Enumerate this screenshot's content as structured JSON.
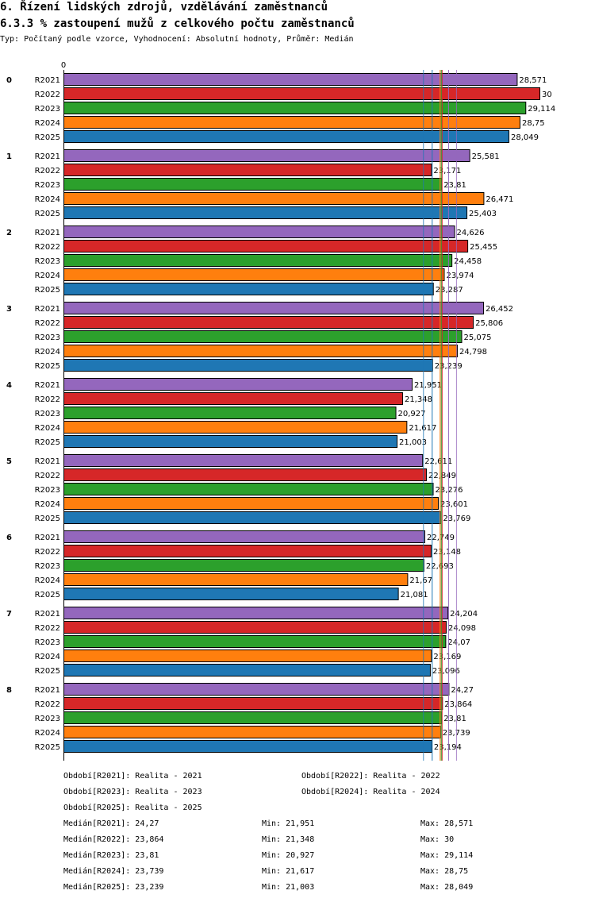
{
  "header": {
    "title": "6. Řízení lidských zdrojů, vzdělávání zaměstnanců",
    "subtitle": "6.3.3 % zastoupení mužů z celkového počtu zaměstnanců",
    "type_line": "Typ: Počítaný podle vzorce, Vyhodnocení: Absolutní hodnoty, Průměr: Medián"
  },
  "chart_data": {
    "type": "bar",
    "orientation": "horizontal",
    "axis_zero_label": "0",
    "xlim": [
      0,
      30
    ],
    "categories": [
      "0",
      "1",
      "2",
      "3",
      "4",
      "5",
      "6",
      "7",
      "8"
    ],
    "series": [
      {
        "name": "R2021",
        "color": "#9467bd",
        "values": [
          28.571,
          25.581,
          24.626,
          26.452,
          21.951,
          22.611,
          22.749,
          24.204,
          24.27
        ],
        "labels": [
          "28,571",
          "25,581",
          "24,626",
          "26,452",
          "21,951",
          "22,611",
          "22,749",
          "24,204",
          "24,27"
        ]
      },
      {
        "name": "R2022",
        "color": "#d62728",
        "values": [
          30,
          23.171,
          25.455,
          25.806,
          21.348,
          22.849,
          23.148,
          24.098,
          23.864
        ],
        "labels": [
          "30",
          "23,171",
          "25,455",
          "25,806",
          "21,348",
          "22,849",
          "23,148",
          "24,098",
          "23,864"
        ]
      },
      {
        "name": "R2023",
        "color": "#2ca02c",
        "values": [
          29.114,
          23.81,
          24.458,
          25.075,
          20.927,
          23.276,
          22.693,
          24.07,
          23.81
        ],
        "labels": [
          "29,114",
          "23,81",
          "24,458",
          "25,075",
          "20,927",
          "23,276",
          "22,693",
          "24,07",
          "23,81"
        ]
      },
      {
        "name": "R2024",
        "color": "#ff7f0e",
        "values": [
          28.75,
          26.471,
          23.974,
          24.798,
          21.617,
          23.601,
          21.67,
          23.169,
          23.739
        ],
        "labels": [
          "28,75",
          "26,471",
          "23,974",
          "24,798",
          "21,617",
          "23,601",
          "21,67",
          "23,169",
          "23,739"
        ]
      },
      {
        "name": "R2025",
        "color": "#1f77b4",
        "values": [
          28.049,
          25.403,
          23.287,
          23.239,
          21.003,
          23.769,
          21.081,
          23.096,
          23.194
        ],
        "labels": [
          "28,049",
          "25,403",
          "23,287",
          "23,239",
          "21,003",
          "23,769",
          "21,081",
          "23,096",
          "23,194"
        ]
      }
    ],
    "median_lines": [
      {
        "series": "R2021",
        "value": 24.27,
        "color": "#9467bd"
      },
      {
        "series": "R2022",
        "value": 23.864,
        "color": "#d62728"
      },
      {
        "series": "R2023",
        "value": 23.81,
        "color": "#2ca02c"
      },
      {
        "series": "R2024",
        "value": 23.739,
        "color": "#ff7f0e"
      },
      {
        "series": "R2025",
        "value": 23.239,
        "color": "#1f77b4"
      }
    ]
  },
  "legend": {
    "periods": [
      "Období[R2021]: Realita - 2021",
      "Období[R2022]: Realita - 2022",
      "Období[R2023]: Realita - 2023",
      "Období[R2024]: Realita - 2024",
      "Období[R2025]: Realita - 2025"
    ],
    "stats": [
      {
        "median": "Medián[R2021]: 24,27",
        "min": "Min: 21,951",
        "max": "Max: 28,571"
      },
      {
        "median": "Medián[R2022]: 23,864",
        "min": "Min: 21,348",
        "max": "Max: 30"
      },
      {
        "median": "Medián[R2023]: 23,81",
        "min": "Min: 20,927",
        "max": "Max: 29,114"
      },
      {
        "median": "Medián[R2024]: 23,739",
        "min": "Min: 21,617",
        "max": "Max: 28,75"
      },
      {
        "median": "Medián[R2025]: 23,239",
        "min": "Min: 21,003",
        "max": "Max: 28,049"
      }
    ]
  }
}
